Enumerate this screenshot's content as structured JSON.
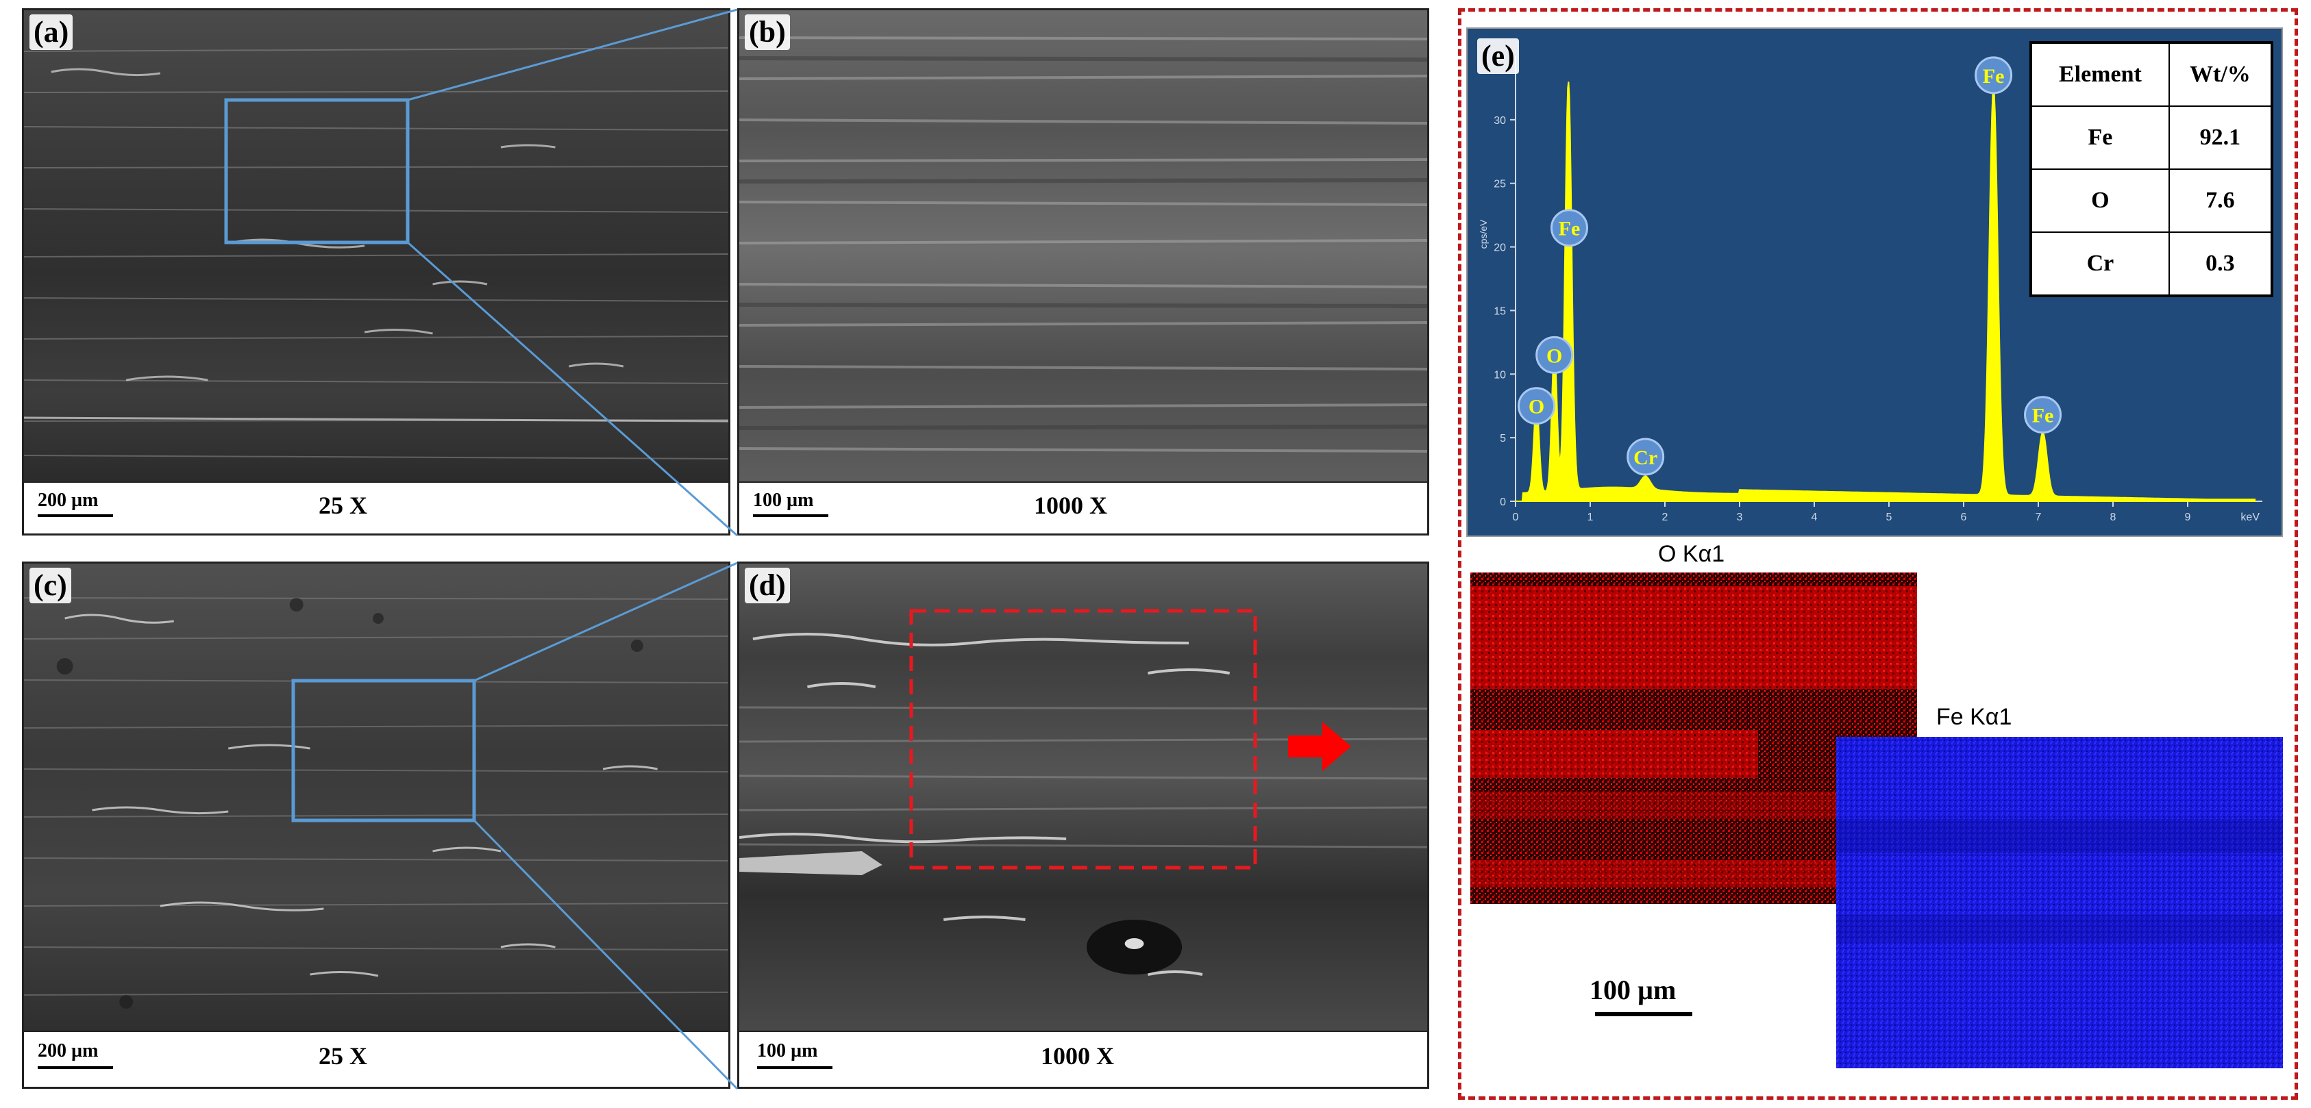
{
  "panels": {
    "a": {
      "label": "(a)",
      "scale": "200 µm",
      "magnification": "25 X"
    },
    "b": {
      "label": "(b)",
      "scale": "100 µm",
      "magnification": "1000 X"
    },
    "c": {
      "label": "(c)",
      "scale": "200 µm",
      "magnification": "25 X"
    },
    "d": {
      "label": "(d)",
      "scale": "100 µm",
      "magnification": "1000 X"
    },
    "e": {
      "label": "(e)"
    }
  },
  "eds": {
    "table": {
      "headers": [
        "Element",
        "Wt/%"
      ],
      "rows": [
        {
          "element": "Fe",
          "wt": "92.1"
        },
        {
          "element": "O",
          "wt": "7.6"
        },
        {
          "element": "Cr",
          "wt": "0.3"
        }
      ]
    },
    "peak_labels": [
      "O",
      "O",
      "Fe",
      "Cr",
      "Fe",
      "Fe"
    ],
    "x_unit": "keV",
    "y_unit": "cps/eV",
    "x_ticks": [
      "0",
      "1",
      "2",
      "3",
      "4",
      "5",
      "6",
      "7",
      "8",
      "9"
    ],
    "y_ticks": [
      "0",
      "5",
      "10",
      "15",
      "20",
      "25",
      "30"
    ]
  },
  "maps": {
    "o_title": "O Kα1",
    "fe_title": "Fe Kα1",
    "scale": "100 µm"
  },
  "colors": {
    "frame_dashed": "#c0181b",
    "zoom_box": "#5b9bd5",
    "eds_background": "#1f4a7a",
    "spectrum": "#ffff00",
    "o_map": "#d40000",
    "fe_map": "#1a1ae6",
    "arrow": "#ff0000"
  },
  "chart_data": {
    "type": "line",
    "x": [
      0.28,
      0.52,
      0.7,
      0.72,
      1.74,
      6.4,
      7.06
    ],
    "series": [
      {
        "values": [
          7,
          11,
          20,
          13,
          1,
          32,
          5
        ]
      }
    ],
    "xlabel": "keV",
    "ylabel": "cps/eV",
    "xlim": [
      0,
      10
    ],
    "ylim": [
      0,
      35
    ],
    "annotations": [
      "O",
      "O",
      "Fe",
      "Cr",
      "Fe",
      "Fe"
    ]
  }
}
